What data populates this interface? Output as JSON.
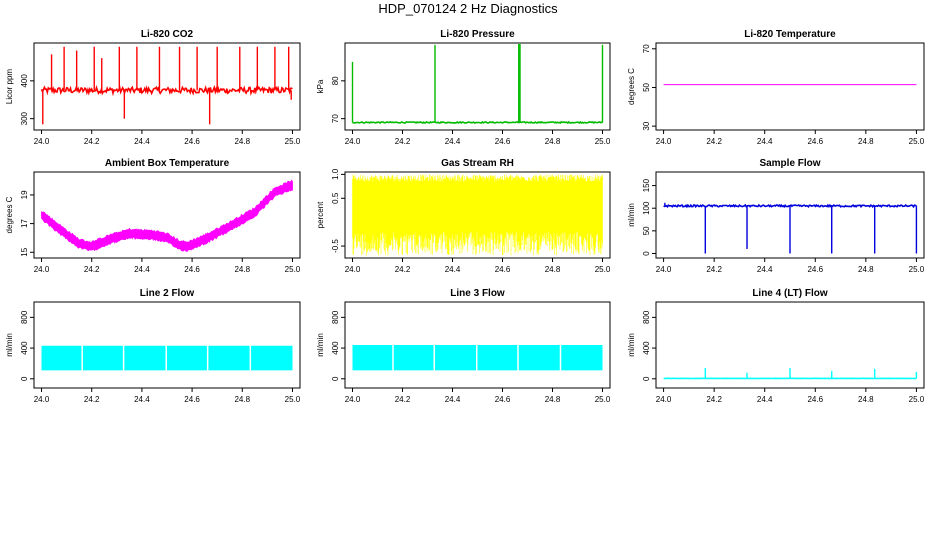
{
  "figure": {
    "title": "HDP_070124  2 Hz Diagnostics"
  },
  "chart_data": [
    {
      "id": "co2",
      "type": "line",
      "title": "Li-820 CO2",
      "xlabel": "",
      "ylabel": "Licor ppm",
      "xlim": [
        23.97,
        25.03
      ],
      "ylim": [
        270,
        500
      ],
      "xticks": [
        24.0,
        24.2,
        24.4,
        24.6,
        24.8,
        25.0
      ],
      "xtick_labels": [
        "24.0",
        "24.2",
        "24.4",
        "24.6",
        "24.8",
        "25.0"
      ],
      "yticks": [
        300,
        400
      ],
      "ytick_labels": [
        "300",
        "400"
      ],
      "color": "#ff0000",
      "series": [
        {
          "baseline": 375,
          "noise": 8,
          "spikes": [
            [
              24.005,
              285
            ],
            [
              24.04,
              470
            ],
            [
              24.09,
              490
            ],
            [
              24.14,
              480
            ],
            [
              24.21,
              490
            ],
            [
              24.24,
              460
            ],
            [
              24.31,
              490
            ],
            [
              24.33,
              300
            ],
            [
              24.38,
              490
            ],
            [
              24.47,
              490
            ],
            [
              24.55,
              490
            ],
            [
              24.62,
              490
            ],
            [
              24.67,
              285
            ],
            [
              24.7,
              490
            ],
            [
              24.79,
              490
            ],
            [
              24.86,
              490
            ],
            [
              24.93,
              490
            ],
            [
              24.985,
              490
            ],
            [
              24.995,
              350
            ]
          ]
        }
      ]
    },
    {
      "id": "pressure",
      "type": "line",
      "title": "Li-820 Pressure",
      "xlabel": "",
      "ylabel": "kPa",
      "xlim": [
        23.97,
        25.03
      ],
      "ylim": [
        67,
        90
      ],
      "xticks": [
        24.0,
        24.2,
        24.4,
        24.6,
        24.8,
        25.0
      ],
      "xtick_labels": [
        "24.0",
        "24.2",
        "24.4",
        "24.6",
        "24.8",
        "25.0"
      ],
      "yticks": [
        70,
        80
      ],
      "ytick_labels": [
        "70",
        "80"
      ],
      "color": "#00bb00",
      "series": [
        {
          "baseline": 69,
          "noise": 0.15,
          "spikes": [
            [
              24.0,
              85
            ],
            [
              24.33,
              89.5
            ],
            [
              24.665,
              90
            ],
            [
              24.67,
              90
            ],
            [
              25.0,
              89.5
            ]
          ]
        }
      ]
    },
    {
      "id": "licor-temp",
      "type": "line",
      "title": "Li-820 Temperature",
      "xlabel": "",
      "ylabel": "degrees C",
      "xlim": [
        23.97,
        25.03
      ],
      "ylim": [
        28,
        73
      ],
      "xticks": [
        24.0,
        24.2,
        24.4,
        24.6,
        24.8,
        25.0
      ],
      "xtick_labels": [
        "24.0",
        "24.2",
        "24.4",
        "24.6",
        "24.8",
        "25.0"
      ],
      "yticks": [
        30,
        50,
        70
      ],
      "ytick_labels": [
        "30",
        "50",
        "70"
      ],
      "color": "#ff00ff",
      "series": [
        {
          "baseline": 51.5,
          "noise": 0,
          "spikes": []
        }
      ]
    },
    {
      "id": "box-temp",
      "type": "line",
      "title": "Ambient Box Temperature",
      "xlabel": "",
      "ylabel": "degrees C",
      "xlim": [
        23.97,
        25.03
      ],
      "ylim": [
        14.6,
        20.6
      ],
      "xticks": [
        24.0,
        24.2,
        24.4,
        24.6,
        24.8,
        25.0
      ],
      "xtick_labels": [
        "24.0",
        "24.2",
        "24.4",
        "24.6",
        "24.8",
        "25.0"
      ],
      "yticks": [
        15,
        17,
        19
      ],
      "ytick_labels": [
        "15",
        "17",
        "19"
      ],
      "color": "#ff00ff",
      "series": [
        {
          "band": 0.6,
          "points": [
            [
              24.0,
              17.6
            ],
            [
              24.08,
              16.5
            ],
            [
              24.15,
              15.6
            ],
            [
              24.2,
              15.4
            ],
            [
              24.27,
              15.9
            ],
            [
              24.35,
              16.3
            ],
            [
              24.45,
              16.2
            ],
            [
              24.5,
              16.0
            ],
            [
              24.55,
              15.5
            ],
            [
              24.58,
              15.4
            ],
            [
              24.65,
              15.9
            ],
            [
              24.75,
              16.8
            ],
            [
              24.85,
              17.8
            ],
            [
              24.93,
              19.2
            ],
            [
              25.0,
              19.7
            ]
          ]
        }
      ]
    },
    {
      "id": "rh",
      "type": "line",
      "title": "Gas Stream RH",
      "xlabel": "",
      "ylabel": "percent",
      "xlim": [
        23.97,
        25.03
      ],
      "ylim": [
        -0.75,
        1.05
      ],
      "xticks": [
        24.0,
        24.2,
        24.4,
        24.6,
        24.8,
        25.0
      ],
      "xtick_labels": [
        "24.0",
        "24.2",
        "24.4",
        "24.6",
        "24.8",
        "25.0"
      ],
      "yticks": [
        -0.5,
        0.5,
        1.0
      ],
      "ytick_labels": [
        "-0.5",
        "0.5",
        "1.0"
      ],
      "color": "#ffff00",
      "series": [
        {
          "low": -0.2,
          "high": 0.85,
          "min": -0.7,
          "max": 1.0
        }
      ]
    },
    {
      "id": "sample-flow",
      "type": "line",
      "title": "Sample Flow",
      "xlabel": "",
      "ylabel": "ml/min",
      "xlim": [
        23.97,
        25.03
      ],
      "ylim": [
        -10,
        180
      ],
      "xticks": [
        24.0,
        24.2,
        24.4,
        24.6,
        24.8,
        25.0
      ],
      "xtick_labels": [
        "24.0",
        "24.2",
        "24.4",
        "24.6",
        "24.8",
        "25.0"
      ],
      "yticks": [
        0,
        50,
        100,
        150
      ],
      "ytick_labels": [
        "0",
        "50",
        "100",
        "150"
      ],
      "color": "#0000dd",
      "series": [
        {
          "baseline": 105,
          "noise": 2,
          "spikes": [
            [
              24.005,
              112
            ],
            [
              24.165,
              0
            ],
            [
              24.33,
              10
            ],
            [
              24.5,
              0
            ],
            [
              24.665,
              0
            ],
            [
              24.835,
              0
            ],
            [
              25.0,
              0
            ]
          ]
        }
      ]
    },
    {
      "id": "line2",
      "type": "line",
      "title": "Line 2 Flow",
      "xlabel": "",
      "ylabel": "ml/min",
      "xlim": [
        23.97,
        25.03
      ],
      "ylim": [
        -120,
        1000
      ],
      "xticks": [
        24.0,
        24.2,
        24.4,
        24.6,
        24.8,
        25.0
      ],
      "xtick_labels": [
        "24.0",
        "24.2",
        "24.4",
        "24.6",
        "24.8",
        "25.0"
      ],
      "yticks": [
        0,
        400,
        800
      ],
      "ytick_labels": [
        "0",
        "400",
        "800"
      ],
      "color": "#00ffff",
      "series": [
        {
          "low": 110,
          "high": 430,
          "gaps": [
            24.165,
            24.33,
            24.5,
            24.665,
            24.835,
            25.0
          ]
        }
      ]
    },
    {
      "id": "line3",
      "type": "line",
      "title": "Line 3 Flow",
      "xlabel": "",
      "ylabel": "ml/min",
      "xlim": [
        23.97,
        25.03
      ],
      "ylim": [
        -120,
        1000
      ],
      "xticks": [
        24.0,
        24.2,
        24.4,
        24.6,
        24.8,
        25.0
      ],
      "xtick_labels": [
        "24.0",
        "24.2",
        "24.4",
        "24.6",
        "24.8",
        "25.0"
      ],
      "yticks": [
        0,
        400,
        800
      ],
      "ytick_labels": [
        "0",
        "400",
        "800"
      ],
      "color": "#00ffff",
      "series": [
        {
          "low": 110,
          "high": 440,
          "gaps": [
            24.165,
            24.33,
            24.5,
            24.665,
            24.835,
            25.0
          ]
        }
      ]
    },
    {
      "id": "line4",
      "type": "line",
      "title": "Line 4 (LT) Flow",
      "xlabel": "",
      "ylabel": "ml/min",
      "xlim": [
        23.97,
        25.03
      ],
      "ylim": [
        -120,
        1000
      ],
      "xticks": [
        24.0,
        24.2,
        24.4,
        24.6,
        24.8,
        25.0
      ],
      "xtick_labels": [
        "24.0",
        "24.2",
        "24.4",
        "24.6",
        "24.8",
        "25.0"
      ],
      "yticks": [
        0,
        400,
        800
      ],
      "ytick_labels": [
        "0",
        "400",
        "800"
      ],
      "color": "#00ffff",
      "series": [
        {
          "baseline": 5,
          "noise": 1,
          "spikes": [
            [
              24.165,
              140
            ],
            [
              24.33,
              80
            ],
            [
              24.5,
              140
            ],
            [
              24.665,
              100
            ],
            [
              24.835,
              130
            ],
            [
              25.0,
              90
            ]
          ]
        }
      ]
    }
  ]
}
